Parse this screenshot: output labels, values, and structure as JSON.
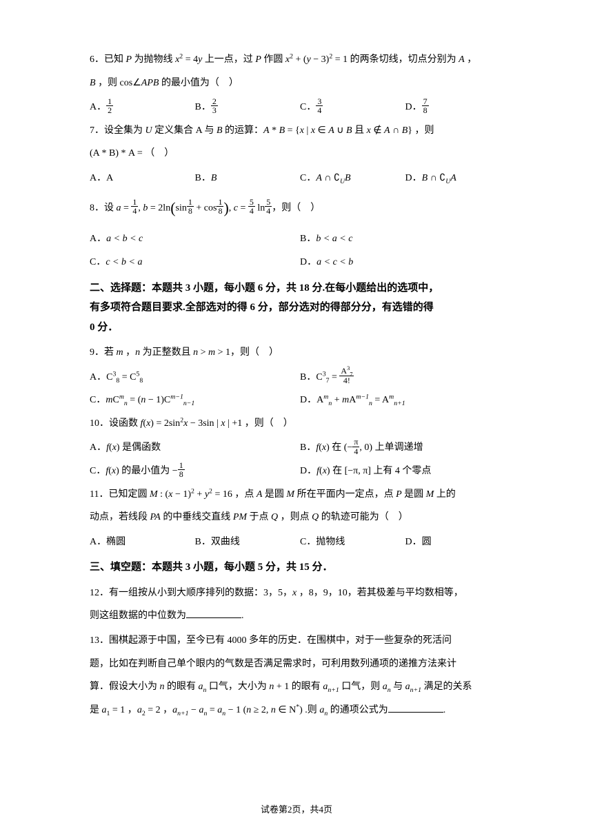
{
  "q6": {
    "text_a": "6．已知 ",
    "text_b": " 为抛物线 ",
    "text_c": " 上一点，过 ",
    "text_d": " 作圆 ",
    "text_e": " 的两条切线，切点分别为 ",
    "text_f": " ，",
    "line2_a": " ，则 cos∠",
    "line2_b": " 的最小值为（　）",
    "P": "P",
    "A": "A",
    "B": "B",
    "APB": "APB",
    "eq1_a": "x",
    "eq1_b": " = 4",
    "eq1_c": "y",
    "eq2_a": "x",
    "eq2_b": " + (",
    "eq2_c": "y",
    "eq2_d": " − 3)",
    "eq2_e": " = 1",
    "optA": "A．",
    "optB": "B．",
    "optC": "C．",
    "optD": "D．",
    "fA_n": "1",
    "fA_d": "2",
    "fB_n": "2",
    "fB_d": "3",
    "fC_n": "3",
    "fC_d": "4",
    "fD_n": "7",
    "fD_d": "8"
  },
  "q7": {
    "text_a": "7．设全集为 ",
    "text_b": " 定义集合 A 与 ",
    "text_c": " 的运算：",
    "text_d": " ，则",
    "U": "U",
    "B": "B",
    "def_a": "A",
    "def_b": "B",
    "def_c": " = {",
    "def_d": "x",
    "def_e": " | ",
    "def_f": " ∈ ",
    "def_g": " ∪ ",
    "def_h": " 且 ",
    "def_i": " ∉ ",
    "def_j": " ∩ ",
    "def_k": "}",
    "line2": "(A * B) * A = （　）",
    "optA": "A．A",
    "optB_a": "B．",
    "optB_b": "B",
    "optC_a": "C．",
    "optC_b": "A",
    "optC_c": " ∩ ∁",
    "optC_d": "U",
    "optC_e": "B",
    "optD_a": "D．",
    "optD_b": "B",
    "optD_c": " ∩ ∁",
    "optD_e": "A"
  },
  "q8": {
    "text_a": "8．设 ",
    "text_b": "，则（　）",
    "a": "a",
    "b": "b",
    "c": "c",
    "eq_a1": " = ",
    "f1_n": "1",
    "f1_d": "4",
    "comma": ", ",
    "eq_b1": " = 2ln",
    "eq_b2": "sin",
    "f2_n": "1",
    "f2_d": "8",
    "eq_b3": " + cos",
    "f3_n": "1",
    "f3_d": "8",
    "eq_c1": " = ",
    "f4_n": "5",
    "f4_d": "4",
    "eq_c2": " ln",
    "f5_n": "5",
    "f5_d": "4",
    "optA_pre": "A．",
    "optA": "a < b < c",
    "optB_pre": "B．",
    "optB": "b < a < c",
    "optC_pre": "C．",
    "optC": "c < b < a",
    "optD_pre": "D．",
    "optD": "a < c < b"
  },
  "section2": {
    "line1": "二、选择题：本题共 3 小题，每小题 6 分，共 18 分.在每小题给出的选项中，",
    "line2": "有多项符合题目要求.全部选对的得 6 分，部分选对的得部分分，有选错的得",
    "line3": "0 分．"
  },
  "q9": {
    "text_a": "9．若 ",
    "text_b": " ，",
    "text_c": " 为正整数且 ",
    "text_d": " > ",
    "text_e": " > 1，则（　）",
    "m": "m",
    "n": "n",
    "optA_pre": "A．",
    "optA_a": "C",
    "optA_b": "3",
    "optA_c": "8",
    "optA_d": " = C",
    "optA_e": "5",
    "optB_pre": "B．",
    "optB_a": "C",
    "optB_b": "3",
    "optB_c": "7",
    "optB_d": " = ",
    "optB_fn_a": "A",
    "optB_fn_b": "3",
    "optB_fn_c": "7",
    "optB_fd": "4!",
    "optC_pre": "C．",
    "optC_a": "m",
    "optC_b": "C",
    "optC_c": "m",
    "optC_d": "n",
    "optC_e": " = (",
    "optC_f": "n",
    "optC_g": " − 1)C",
    "optC_h": "m−1",
    "optC_i": "n−1",
    "optD_pre": "D．",
    "optD_a": "A",
    "optD_b": " + ",
    "optD_c": "m",
    "optD_d": "A",
    "optD_e": "m−1",
    "optD_f": " = A",
    "optD_g": "n+1"
  },
  "q10": {
    "text_a": "10．设函数 ",
    "text_b": "(",
    "text_c": ") = 2sin",
    "text_d": " − 3sin | ",
    "text_e": " | +1 ，则（　）",
    "f": "f",
    "x": "x",
    "sq": "2",
    "optA_pre": "A．",
    "optA_a": "f",
    "optA_b": "(",
    "optA_c": "x",
    "optA_d": ") 是偶函数",
    "optB_pre": "B．",
    "optB_a": "f",
    "optB_b": "(",
    "optB_c": "x",
    "optB_d": ") 在 (−",
    "optB_fn": "π",
    "optB_fd": "4",
    "optB_e": ", 0) 上单调递增",
    "optC_pre": "C．",
    "optC_a": "f",
    "optC_b": "(",
    "optC_c": "x",
    "optC_d": ") 的最小值为 −",
    "optC_fn": "1",
    "optC_fd": "8",
    "optD_pre": "D．",
    "optD_a": "f",
    "optD_b": "(",
    "optD_c": "x",
    "optD_d": ") 在 [−π, π] 上有 4 个零点"
  },
  "q11": {
    "text_a": "11．已知定圆 ",
    "text_b": " : (",
    "text_c": " − 1)",
    "text_d": " + ",
    "text_e": " = 16 ，点 ",
    "text_f": " 是圆 ",
    "text_g": " 所在平面内一定点，点 ",
    "text_h": " 是圆 ",
    "text_i": " 上的",
    "M": "M",
    "x": "x",
    "y": "y",
    "A": "A",
    "P": "P",
    "sq": "2",
    "line2_a": "动点，若线段 ",
    "line2_b": " 的中垂线交直线 ",
    "line2_c": " 于点 ",
    "line2_d": " ，则点 ",
    "line2_e": " 的轨迹可能为（　）",
    "PA": "PA",
    "PM": "PM",
    "Q": "Q",
    "optA": "A．椭圆",
    "optB": "B．双曲线",
    "optC": "C．抛物线",
    "optD": "D．圆"
  },
  "section3": "三、填空题：本题共 3 小题，每小题 5 分，共 15 分．",
  "q12": {
    "line1": "12．有一组按从小到大顺序排列的数据：3，5，",
    "x": "x",
    "line1b": " ，8，9，10，若其极差与平均数相等，",
    "line2": "则这组数据的中位数为",
    "period": "."
  },
  "q13": {
    "line1": "13．围棋起源于中国，至今已有 4000 多年的历史．在围棋中，对于一些复杂的死活问",
    "line2": "题，比如在判断自己单个眼内的气数是否满足需求时，可利用数列通项的递推方法来计",
    "line3_a": "算．假设大小为 ",
    "line3_b": " 的眼有 ",
    "line3_c": " 口气，大小为 ",
    "line3_d": " + 1 的眼有 ",
    "line3_e": " 口气，则 ",
    "line3_f": " 与 ",
    "line3_g": " 满足的关系",
    "n": "n",
    "a": "a",
    "line4_a": "是 ",
    "line4_b": " = 1 ，",
    "line4_c": " = 2 ，",
    "line4_d": " − ",
    "line4_e": " = ",
    "line4_f": " − 1 (",
    "line4_g": " ≥ 2, ",
    "line4_h": " ∈ N",
    "line4_i": ") .则 ",
    "line4_j": " 的通项公式为",
    "star": "*",
    "a1": "1",
    "a2": "2",
    "np1": "n+1",
    "period": "."
  },
  "footer": "试卷第2页，共4页"
}
